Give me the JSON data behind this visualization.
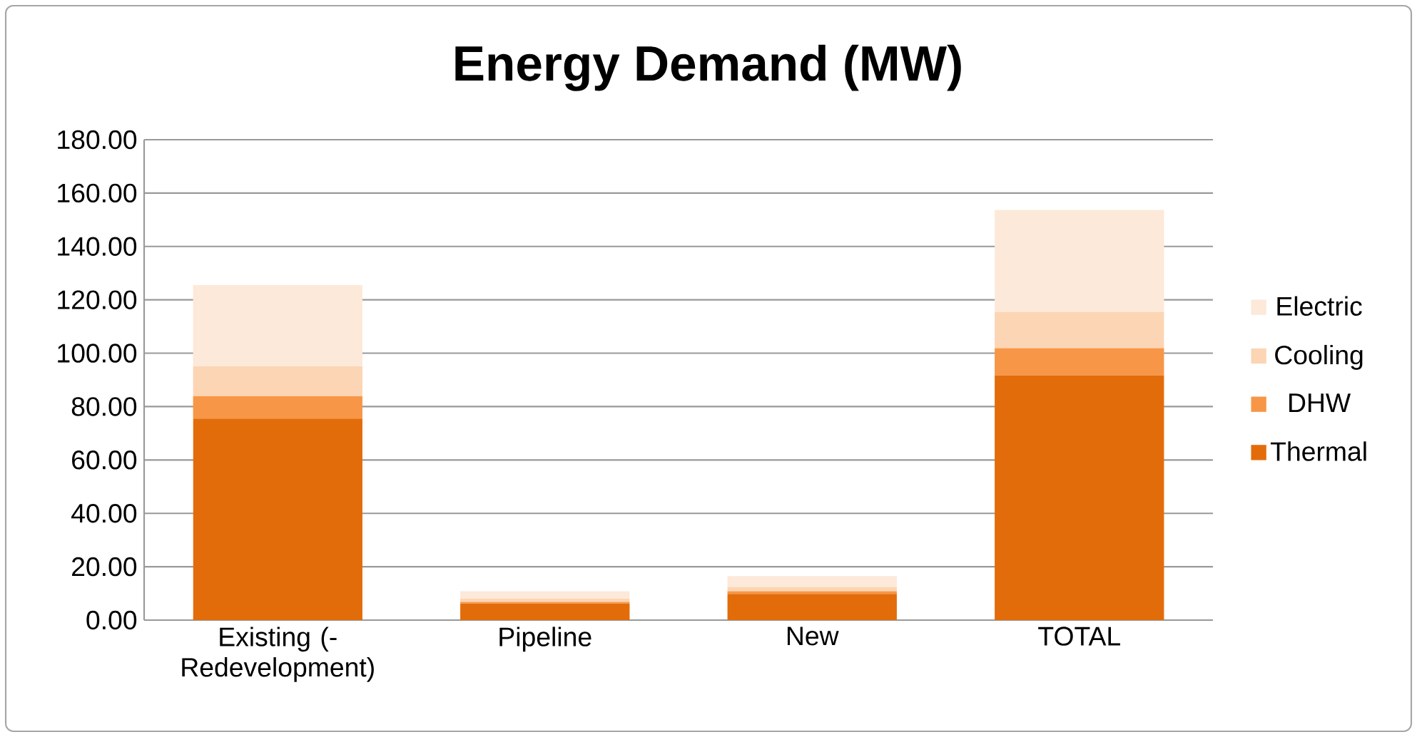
{
  "chart_data": {
    "type": "bar",
    "title": "Energy Demand (MW)",
    "stacked": true,
    "categories": [
      "Existing (-Redevelopment)",
      "Pipeline",
      "New",
      "TOTAL"
    ],
    "series": [
      {
        "name": "Thermal",
        "color": "#e36c0a",
        "values": [
          75.5,
          6.2,
          9.8,
          91.7
        ]
      },
      {
        "name": "DHW",
        "color": "#f79646",
        "values": [
          8.4,
          0.6,
          1.0,
          10.2
        ]
      },
      {
        "name": "Cooling",
        "color": "#fcd5b4",
        "values": [
          11.2,
          1.2,
          1.6,
          13.6
        ]
      },
      {
        "name": "Electric",
        "color": "#fde9d9",
        "values": [
          30.4,
          2.8,
          4.1,
          38.2
        ]
      }
    ],
    "ylim": [
      0,
      180
    ],
    "yticks": [
      {
        "value": 0,
        "label": "0.00"
      },
      {
        "value": 20,
        "label": "20.00"
      },
      {
        "value": 40,
        "label": "40.00"
      },
      {
        "value": 60,
        "label": "60.00"
      },
      {
        "value": 80,
        "label": "80.00"
      },
      {
        "value": 100,
        "label": "100.00"
      },
      {
        "value": 120,
        "label": "120.00"
      },
      {
        "value": 140,
        "label": "140.00"
      },
      {
        "value": 160,
        "label": "160.00"
      },
      {
        "value": 180,
        "label": "180.00"
      }
    ],
    "grid": "y",
    "legend": "right"
  }
}
